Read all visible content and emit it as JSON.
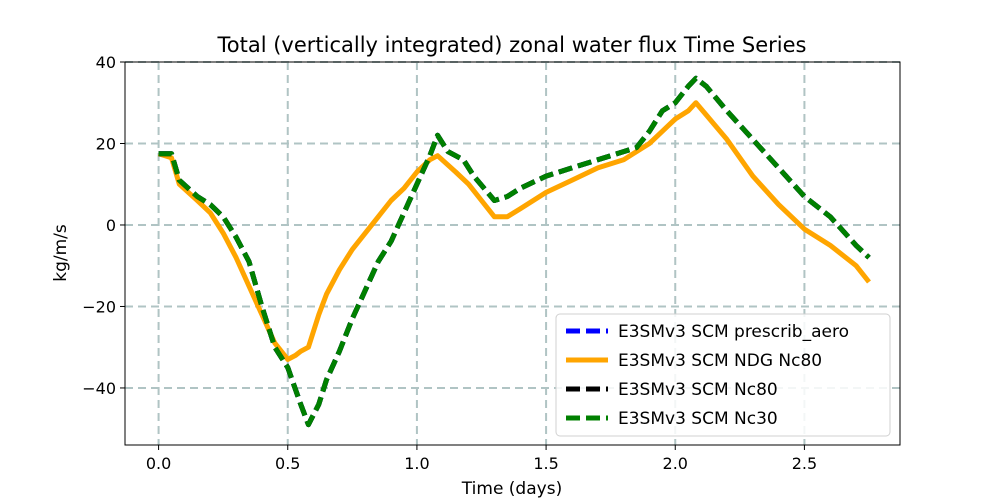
{
  "chart_data": {
    "type": "line",
    "title": "Total (vertically integrated) zonal water flux Time Series",
    "xlabel": "Time (days)",
    "ylabel": "kg/m/s",
    "xlim": [
      -0.13,
      2.87
    ],
    "ylim": [
      -54,
      40
    ],
    "xticks": [
      0.0,
      0.5,
      1.0,
      1.5,
      2.0,
      2.5
    ],
    "xtick_labels": [
      "0.0",
      "0.5",
      "1.0",
      "1.5",
      "2.0",
      "2.5"
    ],
    "yticks": [
      -40,
      -20,
      0,
      20,
      40
    ],
    "ytick_labels": [
      "−40",
      "−20",
      "0",
      "20",
      "40"
    ],
    "grid": true,
    "legend_position": "lower-right",
    "series": [
      {
        "name": "E3SMv3 SCM prescrib_aero",
        "color": "#0000ff",
        "style": "dashed",
        "x": [
          0.0,
          0.05,
          0.08,
          0.15,
          0.2,
          0.25,
          0.3,
          0.35,
          0.4,
          0.45,
          0.5,
          0.55,
          0.58,
          0.62,
          0.65,
          0.7,
          0.75,
          0.8,
          0.85,
          0.9,
          0.95,
          1.0,
          1.05,
          1.08,
          1.12,
          1.18,
          1.22,
          1.3,
          1.35,
          1.4,
          1.5,
          1.6,
          1.7,
          1.8,
          1.85,
          1.9,
          1.95,
          2.0,
          2.05,
          2.08,
          2.12,
          2.2,
          2.3,
          2.4,
          2.5,
          2.6,
          2.7,
          2.75
        ],
        "y": [
          17.5,
          17.5,
          11,
          7,
          5,
          2,
          -3,
          -9,
          -20,
          -30,
          -35,
          -44,
          -49,
          -44,
          -38,
          -31,
          -23,
          -16,
          -9,
          -4,
          3,
          10,
          17,
          22,
          18,
          16,
          12,
          6,
          7,
          9,
          12,
          14,
          16,
          18,
          19,
          23,
          28,
          30,
          34,
          36,
          34,
          28,
          21,
          14,
          7,
          2,
          -5,
          -8
        ]
      },
      {
        "name": "E3SMv3 SCM NDG Nc80",
        "color": "#ffa500",
        "style": "solid",
        "x": [
          0.0,
          0.05,
          0.08,
          0.15,
          0.2,
          0.25,
          0.3,
          0.35,
          0.4,
          0.45,
          0.5,
          0.53,
          0.55,
          0.58,
          0.62,
          0.65,
          0.7,
          0.75,
          0.8,
          0.85,
          0.9,
          0.95,
          1.0,
          1.05,
          1.08,
          1.15,
          1.2,
          1.25,
          1.3,
          1.35,
          1.4,
          1.5,
          1.6,
          1.7,
          1.8,
          1.85,
          1.9,
          1.95,
          2.0,
          2.05,
          2.08,
          2.12,
          2.2,
          2.3,
          2.4,
          2.5,
          2.6,
          2.7,
          2.75
        ],
        "y": [
          17.5,
          16.5,
          10,
          6,
          3,
          -2,
          -8,
          -15,
          -22,
          -29,
          -33,
          -32,
          -31,
          -30,
          -22,
          -17,
          -11,
          -6,
          -2,
          2,
          6,
          9,
          13,
          16,
          17,
          13,
          10,
          6,
          2,
          2,
          4,
          8,
          11,
          14,
          16,
          18,
          20,
          23,
          26,
          28,
          30,
          27,
          21,
          12,
          5,
          -1,
          -5,
          -10,
          -14
        ]
      },
      {
        "name": "E3SMv3 SCM Nc80",
        "color": "#000000",
        "style": "dashed",
        "x": [
          0.0,
          0.05,
          0.08,
          0.15,
          0.2,
          0.25,
          0.3,
          0.35,
          0.4,
          0.45,
          0.5,
          0.55,
          0.58,
          0.62,
          0.65,
          0.7,
          0.75,
          0.8,
          0.85,
          0.9,
          0.95,
          1.0,
          1.05,
          1.08,
          1.12,
          1.18,
          1.22,
          1.3,
          1.35,
          1.4,
          1.5,
          1.6,
          1.7,
          1.8,
          1.85,
          1.9,
          1.95,
          2.0,
          2.05,
          2.08,
          2.12,
          2.2,
          2.3,
          2.4,
          2.5,
          2.6,
          2.7,
          2.75
        ],
        "y": [
          17.5,
          17.5,
          11,
          7,
          5,
          2,
          -3,
          -9,
          -20,
          -30,
          -35,
          -44,
          -49,
          -44,
          -38,
          -31,
          -23,
          -16,
          -9,
          -4,
          3,
          10,
          17,
          22,
          18,
          16,
          12,
          6,
          7,
          9,
          12,
          14,
          16,
          18,
          19,
          23,
          28,
          30,
          34,
          36,
          34,
          28,
          21,
          14,
          7,
          2,
          -5,
          -8
        ]
      },
      {
        "name": "E3SMv3 SCM Nc30",
        "color": "#008000",
        "style": "dashed",
        "x": [
          0.0,
          0.05,
          0.08,
          0.15,
          0.2,
          0.25,
          0.3,
          0.35,
          0.4,
          0.45,
          0.5,
          0.55,
          0.58,
          0.62,
          0.65,
          0.7,
          0.75,
          0.8,
          0.85,
          0.9,
          0.95,
          1.0,
          1.05,
          1.08,
          1.12,
          1.18,
          1.22,
          1.3,
          1.35,
          1.4,
          1.5,
          1.6,
          1.7,
          1.8,
          1.85,
          1.9,
          1.95,
          2.0,
          2.05,
          2.08,
          2.12,
          2.2,
          2.3,
          2.4,
          2.5,
          2.6,
          2.7,
          2.75
        ],
        "y": [
          17.5,
          17.5,
          11,
          7,
          5,
          2,
          -3,
          -9,
          -20,
          -30,
          -35,
          -44,
          -49,
          -44,
          -38,
          -31,
          -23,
          -16,
          -9,
          -4,
          3,
          10,
          17,
          22,
          18,
          16,
          12,
          6,
          7,
          9,
          12,
          14,
          16,
          18,
          19,
          23,
          28,
          30,
          34,
          36,
          34,
          28,
          21,
          14,
          7,
          2,
          -5,
          -8
        ]
      }
    ]
  }
}
